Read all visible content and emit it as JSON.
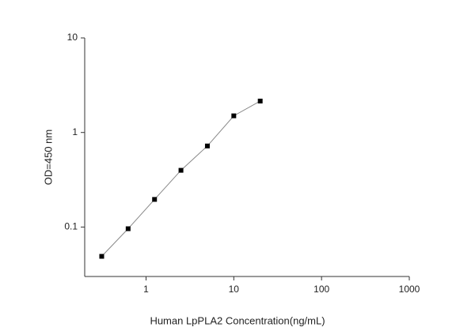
{
  "chart_data": {
    "type": "line",
    "x_label": "Human LpPLA2 Concentration(ng/mL)",
    "y_label": "OD=450 nm",
    "x": [
      0.3125,
      0.625,
      1.25,
      2.5,
      5,
      10,
      20
    ],
    "series": [
      {
        "color": "#000000",
        "line_color": "#888888",
        "values": [
          0.049,
          0.096,
          0.196,
          0.398,
          0.72,
          1.5,
          2.15
        ]
      }
    ],
    "xlim": [
      0.2,
      1000
    ],
    "xticks": [
      1,
      10,
      100,
      1000
    ],
    "x_log": true,
    "ylim": [
      0.03,
      10
    ],
    "yticks": [
      0.1,
      1,
      10
    ],
    "y_log": true
  }
}
